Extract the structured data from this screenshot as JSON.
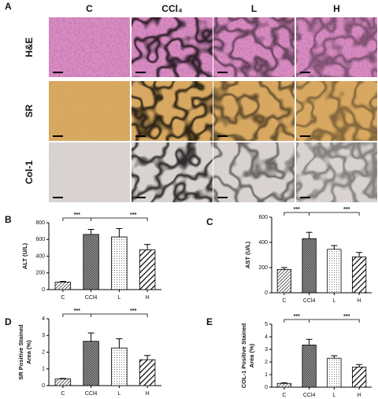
{
  "panel_a": {
    "label": "A",
    "columns": [
      "C",
      "CCl₄",
      "L",
      "H"
    ],
    "rows": [
      "H&E",
      "SR",
      "Col-1"
    ]
  },
  "chart_data": [
    {
      "type": "bar",
      "label": "B",
      "ylabel": [
        "ALT (U/L)"
      ],
      "categories": [
        "C",
        "CCl4",
        "L",
        "H"
      ],
      "values": [
        90,
        660,
        630,
        475
      ],
      "errors": [
        8,
        60,
        100,
        65
      ],
      "ylim": [
        0,
        800
      ],
      "yticks": [
        0,
        200,
        400,
        600,
        800
      ],
      "annotations": [
        "***",
        "***"
      ]
    },
    {
      "type": "bar",
      "label": "C",
      "ylabel": [
        "AST (U/L)"
      ],
      "categories": [
        "C",
        "CCl4",
        "L",
        "H"
      ],
      "values": [
        185,
        430,
        345,
        285
      ],
      "errors": [
        15,
        50,
        30,
        35
      ],
      "ylim": [
        0,
        600
      ],
      "yticks": [
        0,
        200,
        400,
        600
      ],
      "annotations": [
        "***",
        "***"
      ]
    },
    {
      "type": "bar",
      "label": "D",
      "ylabel": [
        "SR Positive Stained",
        "Area (%)"
      ],
      "categories": [
        "C",
        "CCl4",
        "L",
        "H"
      ],
      "values": [
        0.4,
        2.65,
        2.25,
        1.55
      ],
      "errors": [
        0.03,
        0.5,
        0.55,
        0.25
      ],
      "ylim": [
        0,
        4
      ],
      "yticks": [
        0,
        1,
        2,
        3,
        4
      ],
      "annotations": [
        "***",
        "***"
      ]
    },
    {
      "type": "bar",
      "label": "E",
      "ylabel": [
        "COL-1 Positive Stained",
        "Area (%)"
      ],
      "categories": [
        "C",
        "CCl4",
        "L",
        "H"
      ],
      "values": [
        0.3,
        3.35,
        2.3,
        1.6
      ],
      "errors": [
        0.05,
        0.45,
        0.2,
        0.2
      ],
      "ylim": [
        0,
        5
      ],
      "yticks": [
        0,
        1,
        2,
        3,
        4,
        5
      ],
      "annotations": [
        "***",
        "***"
      ]
    }
  ]
}
